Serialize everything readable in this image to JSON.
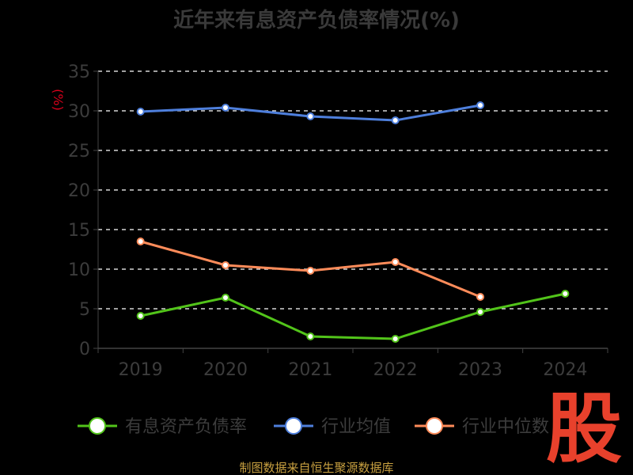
{
  "chart_data": {
    "type": "line",
    "title": "近年来有息资产负债率情况(%)",
    "y_unit": "(%)",
    "categories": [
      "2019",
      "2020",
      "2021",
      "2022",
      "2023",
      "2024"
    ],
    "ylim": [
      0,
      35
    ],
    "yticks": [
      0,
      5,
      10,
      15,
      20,
      25,
      30,
      35
    ],
    "grid": true,
    "legend_position": "bottom",
    "series": [
      {
        "name": "有息资产负债率",
        "color": "#52c41a",
        "values": [
          4.1,
          6.4,
          1.5,
          1.2,
          4.6,
          6.9
        ]
      },
      {
        "name": "行业均值",
        "color": "#4e7fdc",
        "values": [
          29.9,
          30.4,
          29.3,
          28.8,
          30.7,
          null
        ]
      },
      {
        "name": "行业中位数",
        "color": "#ff8c5a",
        "values": [
          13.5,
          10.5,
          9.8,
          10.9,
          6.5,
          null
        ]
      }
    ]
  },
  "source_note": "制图数据来自恒生聚源数据库",
  "watermark": "股"
}
